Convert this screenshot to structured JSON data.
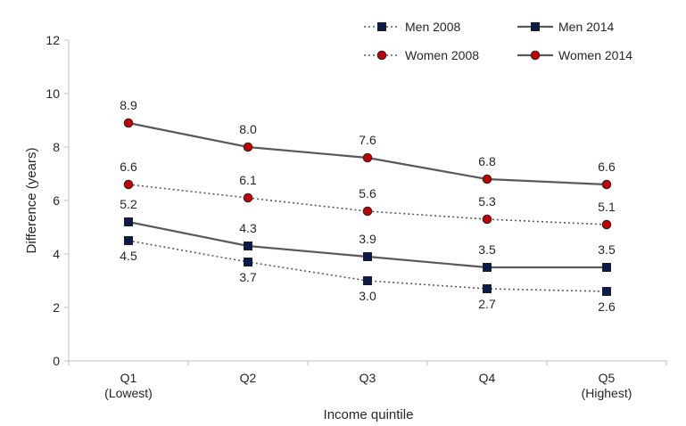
{
  "chart_data": {
    "type": "line",
    "categories": [
      [
        "Q1",
        "(Lowest)"
      ],
      [
        "Q2"
      ],
      [
        "Q3"
      ],
      [
        "Q4"
      ],
      [
        "Q5",
        "(Highest)"
      ]
    ],
    "xlabel": "Income quintile",
    "ylabel": "Difference (years)",
    "ylim": [
      0,
      12
    ],
    "yticks": [
      0,
      2,
      4,
      6,
      8,
      10,
      12
    ],
    "grid": false,
    "legend": "top-right",
    "colors": {
      "line": "#595959",
      "men_marker": "#0d1b4c",
      "women_marker": "#c00000",
      "axis": "#bfbfbf"
    },
    "series": [
      {
        "name": "Men 2008",
        "values": [
          4.5,
          3.7,
          3.0,
          2.7,
          2.6
        ],
        "marker": "square",
        "style": "dotted",
        "label_position": "below"
      },
      {
        "name": "Men 2014",
        "values": [
          5.2,
          4.3,
          3.9,
          3.5,
          3.5
        ],
        "marker": "square",
        "style": "solid",
        "label_position": "above"
      },
      {
        "name": "Women 2008",
        "values": [
          6.6,
          6.1,
          5.6,
          5.3,
          5.1
        ],
        "marker": "circle",
        "style": "dotted",
        "label_position": "above"
      },
      {
        "name": "Women 2014",
        "values": [
          8.9,
          8.0,
          7.6,
          6.8,
          6.6
        ],
        "marker": "circle",
        "style": "solid",
        "label_position": "above"
      }
    ],
    "labels": [
      [
        "4.5",
        "3.7",
        "3.0",
        "2.7",
        "2.6"
      ],
      [
        "5.2",
        "4.3",
        "3.9",
        "3.5",
        "3.5"
      ],
      [
        "6.6",
        "6.1",
        "5.6",
        "5.3",
        "5.1"
      ],
      [
        "8.9",
        "8.0",
        "7.6",
        "6.8",
        "6.6"
      ]
    ]
  }
}
